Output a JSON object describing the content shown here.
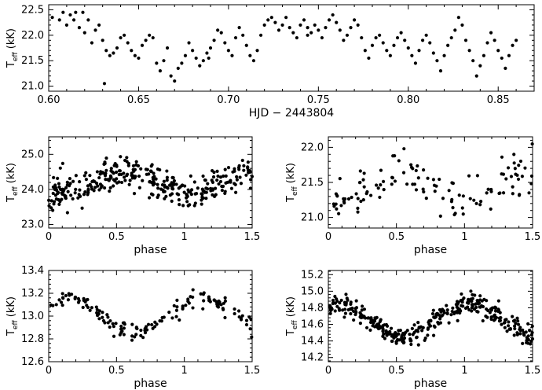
{
  "chart_data": [
    {
      "type": "scatter",
      "xlabel": "HJD − 2443804",
      "ylabel": "T",
      "ylabel_sub": "eff",
      "ylabel_unit": "(kK)",
      "xlim": [
        0.6,
        0.87
      ],
      "ylim": [
        20.9,
        22.6
      ],
      "xticks_major": [
        "0.60",
        "0.65",
        "0.70",
        "0.75",
        "0.80",
        "0.85"
      ],
      "yticks_major": [
        "21.0",
        "21.5",
        "22.0",
        "22.5"
      ],
      "points": [
        [
          0.602,
          22.35
        ],
        [
          0.606,
          22.3
        ],
        [
          0.608,
          22.45
        ],
        [
          0.61,
          22.2
        ],
        [
          0.612,
          22.4
        ],
        [
          0.614,
          22.3
        ],
        [
          0.615,
          22.45
        ],
        [
          0.617,
          22.15
        ],
        [
          0.62,
          22.05
        ],
        [
          0.622,
          22.3
        ],
        [
          0.624,
          21.85
        ],
        [
          0.626,
          22.1
        ],
        [
          0.628,
          22.2
        ],
        [
          0.63,
          21.9
        ],
        [
          0.632,
          21.7
        ],
        [
          0.634,
          21.6
        ],
        [
          0.636,
          21.65
        ],
        [
          0.638,
          21.75
        ],
        [
          0.64,
          21.95
        ],
        [
          0.642,
          22.0
        ],
        [
          0.644,
          21.85
        ],
        [
          0.646,
          21.7
        ],
        [
          0.648,
          21.6
        ],
        [
          0.65,
          21.55
        ],
        [
          0.652,
          21.8
        ],
        [
          0.654,
          21.9
        ],
        [
          0.656,
          22.0
        ],
        [
          0.658,
          21.95
        ],
        [
          0.66,
          21.45
        ],
        [
          0.662,
          21.3
        ],
        [
          0.664,
          21.5
        ],
        [
          0.666,
          21.75
        ],
        [
          0.668,
          21.2
        ],
        [
          0.67,
          21.1
        ],
        [
          0.672,
          21.35
        ],
        [
          0.674,
          21.45
        ],
        [
          0.676,
          21.6
        ],
        [
          0.678,
          21.85
        ],
        [
          0.68,
          21.7
        ],
        [
          0.682,
          21.55
        ],
        [
          0.684,
          21.4
        ],
        [
          0.686,
          21.5
        ],
        [
          0.688,
          21.65
        ],
        [
          0.69,
          21.75
        ],
        [
          0.692,
          21.9
        ],
        [
          0.694,
          22.1
        ],
        [
          0.696,
          22.05
        ],
        [
          0.698,
          21.85
        ],
        [
          0.7,
          21.7
        ],
        [
          0.702,
          21.6
        ],
        [
          0.704,
          21.95
        ],
        [
          0.706,
          22.15
        ],
        [
          0.708,
          22.0
        ],
        [
          0.71,
          21.8
        ],
        [
          0.712,
          21.6
        ],
        [
          0.714,
          21.5
        ],
        [
          0.716,
          21.7
        ],
        [
          0.718,
          22.0
        ],
        [
          0.72,
          22.2
        ],
        [
          0.722,
          22.3
        ],
        [
          0.724,
          22.35
        ],
        [
          0.726,
          22.25
        ],
        [
          0.728,
          22.1
        ],
        [
          0.73,
          22.2
        ],
        [
          0.732,
          22.35
        ],
        [
          0.734,
          22.15
        ],
        [
          0.736,
          22.05
        ],
        [
          0.738,
          21.95
        ],
        [
          0.74,
          22.2
        ],
        [
          0.742,
          22.3
        ],
        [
          0.744,
          22.15
        ],
        [
          0.746,
          22.05
        ],
        [
          0.748,
          22.2
        ],
        [
          0.75,
          22.1
        ],
        [
          0.752,
          21.95
        ],
        [
          0.754,
          22.15
        ],
        [
          0.756,
          22.3
        ],
        [
          0.758,
          22.4
        ],
        [
          0.76,
          22.25
        ],
        [
          0.762,
          22.1
        ],
        [
          0.764,
          21.9
        ],
        [
          0.766,
          22.0
        ],
        [
          0.768,
          22.15
        ],
        [
          0.77,
          22.3
        ],
        [
          0.772,
          22.2
        ],
        [
          0.774,
          21.95
        ],
        [
          0.776,
          21.7
        ],
        [
          0.778,
          21.55
        ],
        [
          0.78,
          21.8
        ],
        [
          0.782,
          21.95
        ],
        [
          0.784,
          22.0
        ],
        [
          0.786,
          21.85
        ],
        [
          0.788,
          21.7
        ],
        [
          0.79,
          21.6
        ],
        [
          0.792,
          21.8
        ],
        [
          0.794,
          21.95
        ],
        [
          0.796,
          22.05
        ],
        [
          0.798,
          21.9
        ],
        [
          0.8,
          21.75
        ],
        [
          0.802,
          21.6
        ],
        [
          0.804,
          21.45
        ],
        [
          0.806,
          21.7
        ],
        [
          0.808,
          21.9
        ],
        [
          0.81,
          22.0
        ],
        [
          0.812,
          21.85
        ],
        [
          0.814,
          21.65
        ],
        [
          0.816,
          21.5
        ],
        [
          0.818,
          21.3
        ],
        [
          0.82,
          21.6
        ],
        [
          0.822,
          21.8
        ],
        [
          0.824,
          21.95
        ],
        [
          0.826,
          22.1
        ],
        [
          0.828,
          22.35
        ],
        [
          0.83,
          22.2
        ],
        [
          0.832,
          21.9
        ],
        [
          0.834,
          21.7
        ],
        [
          0.836,
          21.5
        ],
        [
          0.838,
          21.2
        ],
        [
          0.84,
          21.4
        ],
        [
          0.842,
          21.6
        ],
        [
          0.844,
          21.85
        ],
        [
          0.846,
          22.05
        ],
        [
          0.848,
          21.9
        ],
        [
          0.85,
          21.7
        ],
        [
          0.852,
          21.55
        ],
        [
          0.854,
          21.35
        ],
        [
          0.856,
          21.6
        ],
        [
          0.858,
          21.8
        ],
        [
          0.86,
          21.9
        ],
        [
          0.631,
          21.05
        ],
        [
          0.619,
          22.45
        ],
        [
          0.689,
          21.55
        ],
        [
          0.744,
          22.0
        ]
      ]
    },
    {
      "type": "scatter",
      "xlabel": "phase",
      "ylabel": "T",
      "ylabel_sub": "eff",
      "ylabel_unit": "(kK)",
      "xlim": [
        0,
        1.5
      ],
      "ylim": [
        22.9,
        25.5
      ],
      "xticks_major": [
        "0",
        "0.5",
        "1",
        "1.5"
      ],
      "yticks_major": [
        "23.0",
        "24.0",
        "25.0"
      ],
      "model": {
        "mean": 24.2,
        "amp": 0.35,
        "peak_phase": 0.55,
        "scatter": 0.35,
        "count": 330,
        "seed": 11
      }
    },
    {
      "type": "scatter",
      "xlabel": "phase",
      "ylabel": "T",
      "ylabel_sub": "eff",
      "ylabel_unit": "(kK)",
      "xlim": [
        0,
        1.5
      ],
      "ylim": [
        20.85,
        22.15
      ],
      "xticks_major": [
        "0",
        "0.5",
        "1",
        "1.5"
      ],
      "yticks_major": [
        "21.0",
        "21.5",
        "22.0"
      ],
      "model": {
        "mean": 21.45,
        "amp": 0.25,
        "peak_phase": 0.5,
        "scatter": 0.22,
        "count": 120,
        "seed": 23
      }
    },
    {
      "type": "scatter",
      "xlabel": "phase",
      "ylabel": "T",
      "ylabel_sub": "eff",
      "ylabel_unit": "(kK)",
      "xlim": [
        0,
        1.5
      ],
      "ylim": [
        12.6,
        13.4
      ],
      "xticks_major": [
        "0",
        "0.5",
        "1",
        "1.5"
      ],
      "yticks_major": [
        "12.6",
        "12.8",
        "13.0",
        "13.2",
        "13.4"
      ],
      "model": {
        "mean": 13.0,
        "amp": 0.15,
        "peak_phase": 0.15,
        "scatter": 0.06,
        "count": 150,
        "seed": 37
      }
    },
    {
      "type": "scatter",
      "xlabel": "phase",
      "ylabel": "T",
      "ylabel_sub": "eff",
      "ylabel_unit": "(kK)",
      "xlim": [
        0,
        1.5
      ],
      "ylim": [
        14.15,
        15.25
      ],
      "xticks_major": [
        "0",
        "0.5",
        "1",
        "1.5"
      ],
      "yticks_major": [
        "14.2",
        "14.4",
        "14.6",
        "14.8",
        "15.0",
        "15.2"
      ],
      "model": {
        "mean": 14.65,
        "amp": 0.2,
        "peak_phase": 0.05,
        "scatter": 0.09,
        "count": 360,
        "seed": 53
      }
    }
  ]
}
